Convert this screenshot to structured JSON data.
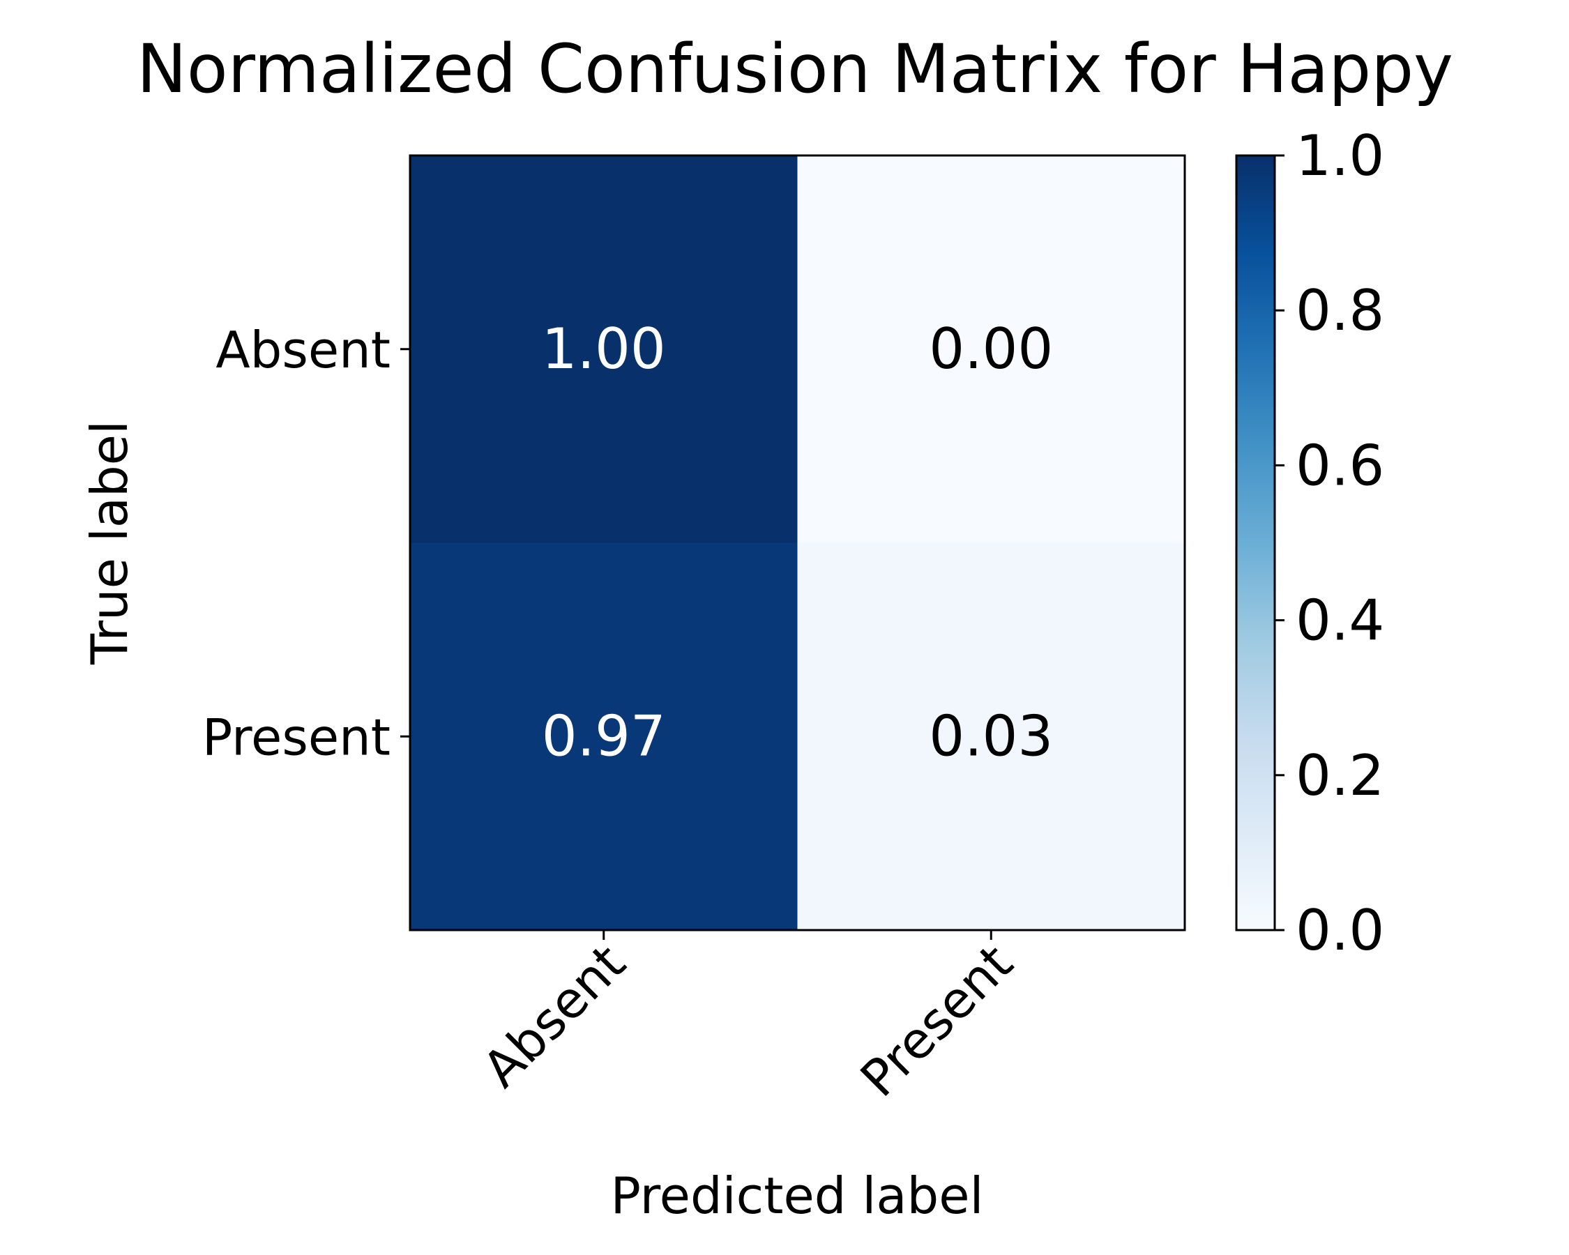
{
  "chart_data": {
    "type": "heatmap",
    "title": "Normalized Confusion Matrix for Happy",
    "xlabel": "Predicted label",
    "ylabel": "True label",
    "x_categories": [
      "Absent",
      "Present"
    ],
    "y_categories": [
      "Absent",
      "Present"
    ],
    "values": [
      [
        1.0,
        0.0
      ],
      [
        0.97,
        0.03
      ]
    ],
    "cell_labels": [
      [
        "1.00",
        "0.00"
      ],
      [
        "0.97",
        "0.03"
      ]
    ],
    "colormap": "Blues",
    "colorbar": {
      "range": [
        0.0,
        1.0
      ],
      "ticks": [
        0.0,
        0.2,
        0.4,
        0.6,
        0.8,
        1.0
      ],
      "tick_labels": [
        "0.0",
        "0.2",
        "0.4",
        "0.6",
        "0.8",
        "1.0"
      ]
    },
    "grid": false,
    "x_tick_rotation": 45
  }
}
